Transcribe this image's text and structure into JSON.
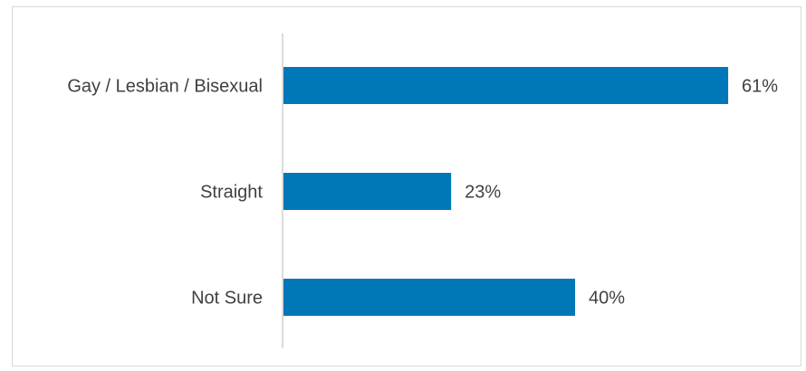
{
  "chart_data": {
    "type": "bar",
    "orientation": "horizontal",
    "categories": [
      "Gay / Lesbian / Bisexual",
      "Straight",
      "Not Sure"
    ],
    "values": [
      61,
      23,
      40
    ],
    "value_labels": [
      "61%",
      "23%",
      "40%"
    ],
    "unit": "%",
    "xlim": [
      0,
      100
    ],
    "grid": false,
    "legend": "none",
    "colors": {
      "bar": "#0077B6",
      "axis": "#d0d0d0",
      "text": "#404040"
    }
  }
}
